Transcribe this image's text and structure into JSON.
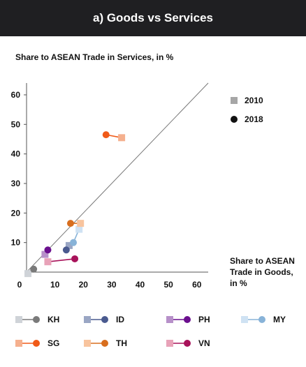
{
  "header": {
    "title": "a) Goods vs Services"
  },
  "chart_data": {
    "type": "scatter",
    "title": "a) Goods vs Services",
    "ylabel": "Share to ASEAN Trade in Services, in %",
    "xlabel": "Share to ASEAN Trade in Goods, in %",
    "xlim": [
      0,
      64
    ],
    "ylim": [
      0,
      64
    ],
    "xticks": [
      "0",
      "10",
      "20",
      "30",
      "40",
      "50",
      "60"
    ],
    "yticks": [
      "10",
      "20",
      "30",
      "40",
      "50",
      "60"
    ],
    "diagonal": true,
    "year_legend": [
      {
        "label": "2010",
        "marker": "square"
      },
      {
        "label": "2018",
        "marker": "circle"
      }
    ],
    "series": [
      {
        "name": "KH",
        "color_2010": "#cfd3d8",
        "color_2018": "#7a7a7a",
        "p2010": [
          0.5,
          -0.5
        ],
        "p2018": [
          2.5,
          1.0
        ]
      },
      {
        "name": "ID",
        "color_2010": "#9aa6c4",
        "color_2018": "#4a5a8f",
        "p2010": [
          15.0,
          9.0
        ],
        "p2018": [
          14.0,
          7.5
        ]
      },
      {
        "name": "PH",
        "color_2010": "#b790c9",
        "color_2018": "#6b0f8e",
        "p2010": [
          6.5,
          6.0
        ],
        "p2018": [
          7.5,
          7.5
        ]
      },
      {
        "name": "MY",
        "color_2010": "#cfe2f3",
        "color_2018": "#88b3d8",
        "p2010": [
          18.5,
          14.5
        ],
        "p2018": [
          16.5,
          10.0
        ]
      },
      {
        "name": "SG",
        "color_2010": "#f5b08e",
        "color_2018": "#f05a18",
        "p2010": [
          33.5,
          45.5
        ],
        "p2018": [
          28.0,
          46.5
        ]
      },
      {
        "name": "TH",
        "color_2010": "#f8c49e",
        "color_2018": "#d86e1e",
        "p2010": [
          19.0,
          16.5
        ],
        "p2018": [
          15.5,
          16.5
        ]
      },
      {
        "name": "VN",
        "color_2010": "#e8a2b8",
        "color_2018": "#a8125a",
        "p2010": [
          7.5,
          3.5
        ],
        "p2018": [
          17.0,
          4.5
        ]
      }
    ]
  }
}
